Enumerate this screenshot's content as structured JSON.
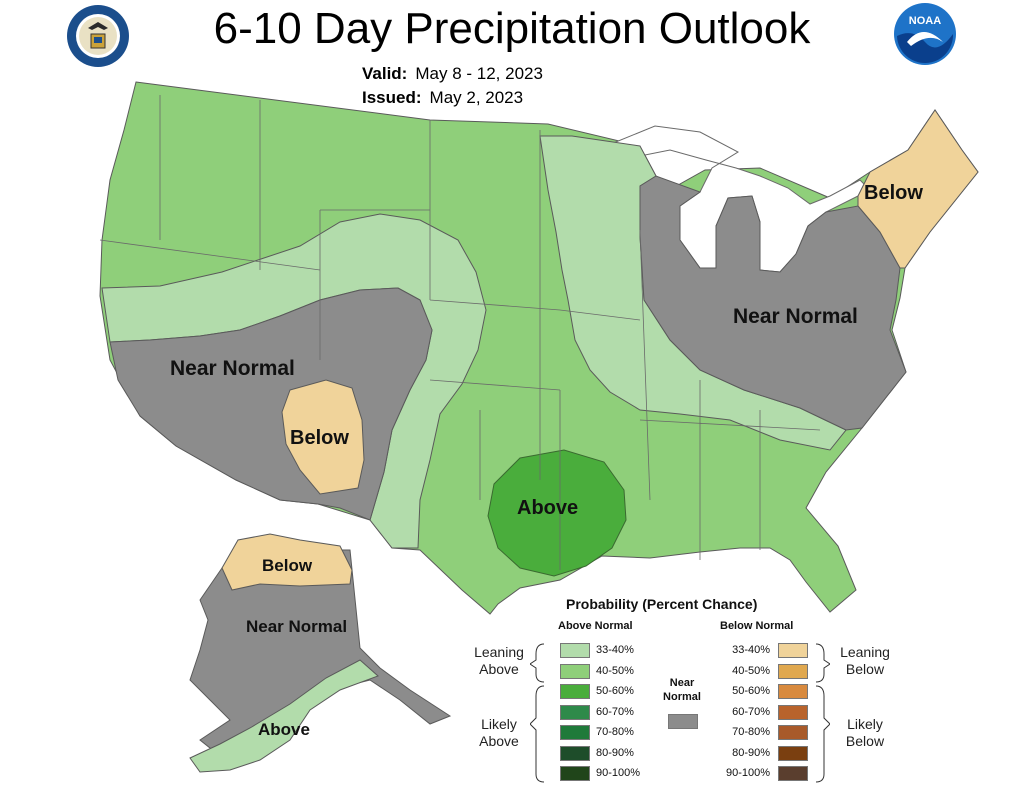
{
  "header": {
    "title": "6-10 Day Precipitation Outlook",
    "valid_label": "Valid:",
    "valid_value": "May 8 - 12, 2023",
    "issued_label": "Issued:",
    "issued_value": "May 2, 2023",
    "left_logo": "commerce-seal-icon",
    "right_logo": "noaa-logo-icon"
  },
  "colors": {
    "leaning_above": "#b2dcab",
    "above_40_50": "#8fcf7a",
    "above_50_60": "#4aad3c",
    "near_normal": "#8c8c8c",
    "leaning_below": "#f0d39a",
    "water": "#ffffff"
  },
  "map_labels": {
    "west_near_normal": "Near Normal",
    "southwest_below": "Below",
    "texas_above": "Above",
    "east_near_normal": "Near Normal",
    "northeast_below": "Below",
    "alaska_below": "Below",
    "alaska_near_normal": "Near Normal",
    "alaska_above": "Above"
  },
  "legend": {
    "title": "Probability (Percent Chance)",
    "above_header": "Above Normal",
    "below_header": "Below Normal",
    "near_header": "Near Normal",
    "leaning_above": "Leaning Above",
    "likely_above": "Likely Above",
    "leaning_below": "Leaning Below",
    "likely_below": "Likely Below",
    "above_items": [
      {
        "label": "33-40%",
        "color": "#b2dcab"
      },
      {
        "label": "40-50%",
        "color": "#8fcf7a"
      },
      {
        "label": "50-60%",
        "color": "#4aad3c"
      },
      {
        "label": "60-70%",
        "color": "#2e8a4a"
      },
      {
        "label": "70-80%",
        "color": "#1f7a3a"
      },
      {
        "label": "80-90%",
        "color": "#1e4d2a"
      },
      {
        "label": "90-100%",
        "color": "#20451a"
      }
    ],
    "below_items": [
      {
        "label": "33-40%",
        "color": "#f0d39a"
      },
      {
        "label": "40-50%",
        "color": "#e0a84f"
      },
      {
        "label": "50-60%",
        "color": "#d88a3e"
      },
      {
        "label": "60-70%",
        "color": "#b8632c"
      },
      {
        "label": "70-80%",
        "color": "#a85a2a"
      },
      {
        "label": "80-90%",
        "color": "#7a3f10"
      },
      {
        "label": "90-100%",
        "color": "#5a3e2e"
      }
    ],
    "near_color": "#8c8c8c"
  }
}
